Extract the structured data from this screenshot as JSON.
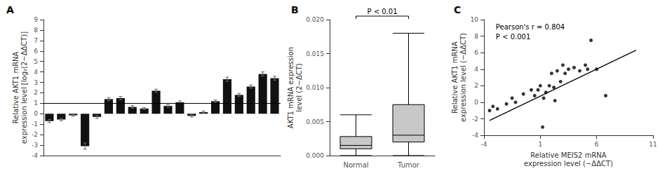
{
  "chart_data": [
    {
      "type": "bar",
      "title": "A",
      "categories": [
        null,
        null,
        null,
        null,
        null,
        null,
        null,
        null,
        null,
        null,
        null,
        null,
        null,
        null,
        null,
        null,
        null,
        null,
        null,
        null
      ],
      "values": [
        -0.7,
        -0.55,
        -0.15,
        -3.1,
        -0.3,
        1.4,
        1.5,
        0.65,
        0.5,
        2.2,
        0.75,
        1.1,
        -0.2,
        0.15,
        1.2,
        3.3,
        1.8,
        2.6,
        3.8,
        3.4
      ],
      "errors": [
        0.15,
        0.12,
        0.08,
        0.3,
        0.15,
        0.15,
        0.15,
        0.12,
        0.1,
        0.15,
        0.12,
        0.12,
        0.1,
        0.1,
        0.12,
        0.2,
        0.15,
        0.15,
        0.2,
        0.18
      ],
      "hline": 1.0,
      "color": "#111111",
      "ylabel": "Relative AKT1 mRNA\nexpression level [log₂(2−ΔΔCT)]",
      "ylim": [
        -4,
        9
      ],
      "yticks": [
        -4,
        -3,
        -2,
        -1,
        0,
        1,
        2,
        3,
        4,
        5,
        6,
        7,
        8,
        9
      ],
      "tick_labels": "y",
      "grid": false
    },
    {
      "type": "boxplot",
      "title": "B",
      "categories": [
        "Normal",
        "Tumor"
      ],
      "boxes": [
        {
          "min": 0.0,
          "q1": 0.001,
          "median": 0.0015,
          "q3": 0.0028,
          "max": 0.006
        },
        {
          "min": 0.0,
          "q1": 0.002,
          "median": 0.003,
          "q3": 0.0075,
          "max": 0.018
        }
      ],
      "color": "#c8c8c8",
      "ylabel": "AKT1 mRNA expression\nlevel (2−ΔCT)",
      "ylim": [
        0,
        0.02
      ],
      "yticks": [
        {
          "value": 0.0,
          "label": "0.000"
        },
        {
          "value": 0.005,
          "label": "0.005"
        },
        {
          "value": 0.01,
          "label": "0.010"
        },
        {
          "value": 0.015,
          "label": "0.015"
        },
        {
          "value": 0.02,
          "label": "0.020"
        }
      ],
      "annotations": [
        "P < 0.01"
      ],
      "grid": false
    },
    {
      "type": "scatter",
      "title": "C",
      "series": [
        {
          "type": "scatter",
          "color": "#000000",
          "marker": "circle",
          "x": [
            -3.5,
            -3.2,
            -2.8,
            -2.0,
            -1.5,
            -1.2,
            -0.5,
            0.2,
            0.5,
            0.8,
            1.0,
            1.3,
            1.5,
            1.8,
            2.0,
            2.2,
            2.5,
            2.8,
            3.0,
            3.2,
            3.5,
            4.0,
            4.5,
            5.0,
            5.2,
            5.5,
            6.0,
            6.8,
            1.2,
            2.3
          ],
          "values": [
            -1.0,
            -0.5,
            -0.8,
            -0.2,
            0.5,
            0.0,
            1.0,
            1.5,
            0.8,
            1.5,
            2.0,
            0.5,
            1.2,
            2.0,
            3.5,
            1.8,
            3.8,
            2.5,
            4.5,
            3.5,
            4.0,
            4.2,
            3.8,
            4.5,
            4.0,
            7.5,
            4.0,
            0.8,
            -3.0,
            0.2
          ]
        },
        {
          "type": "line",
          "color": "#000000",
          "line_style": "solid",
          "x": [
            -3.5,
            9.5
          ],
          "values": [
            -2.2,
            6.3
          ]
        }
      ],
      "annotations": [
        "Pearson's r = 0.804",
        "P < 0.001"
      ],
      "xlabel": "Relative MEIS2 mRNA\nexpression level (−ΔΔCT)",
      "ylabel": "Relative AKT1 mRNA\nexpression level (−ΔΔCT)",
      "xlim": [
        -4,
        11
      ],
      "ylim": [
        -4,
        10
      ],
      "xticks": [
        -4,
        1,
        6,
        11
      ],
      "yticks": [
        -4,
        -2,
        0,
        2,
        4,
        6,
        8,
        10
      ],
      "grid": false
    }
  ]
}
